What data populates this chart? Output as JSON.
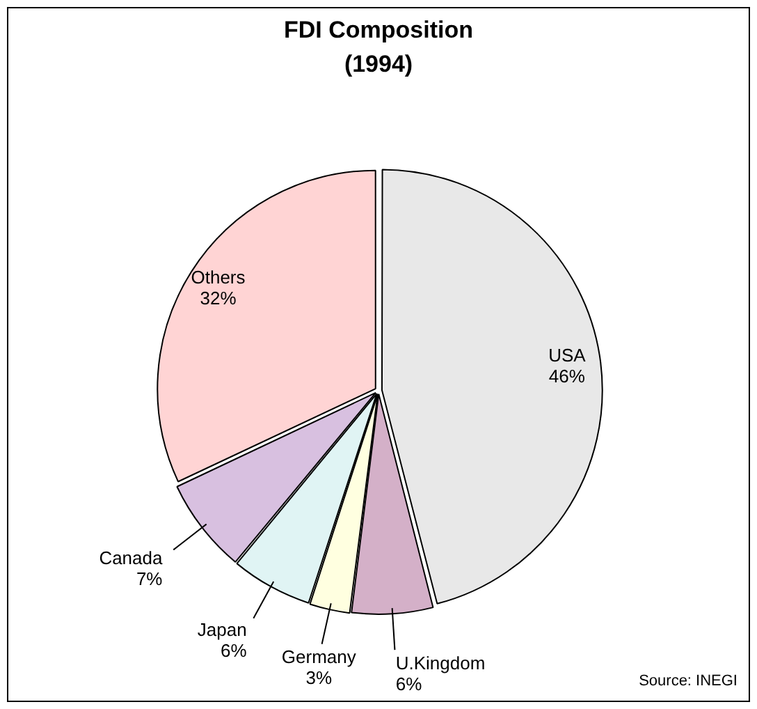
{
  "chart_data": {
    "type": "pie",
    "title": "FDI Composition",
    "subtitle": "(1994)",
    "categories": [
      "USA",
      "U.Kingdom",
      "Germany",
      "Japan",
      "Canada",
      "Others"
    ],
    "values": [
      46,
      6,
      3,
      6,
      7,
      32
    ],
    "value_labels": [
      "46%",
      "6%",
      "3%",
      "6%",
      "7%",
      "32%"
    ],
    "colors": [
      "#e8e8e8",
      "#d4b0c8",
      "#ffffe0",
      "#e0f4f4",
      "#d8c0e0",
      "#ffd4d4"
    ],
    "legend": false,
    "annotations": [
      "Source: INEGI"
    ]
  }
}
